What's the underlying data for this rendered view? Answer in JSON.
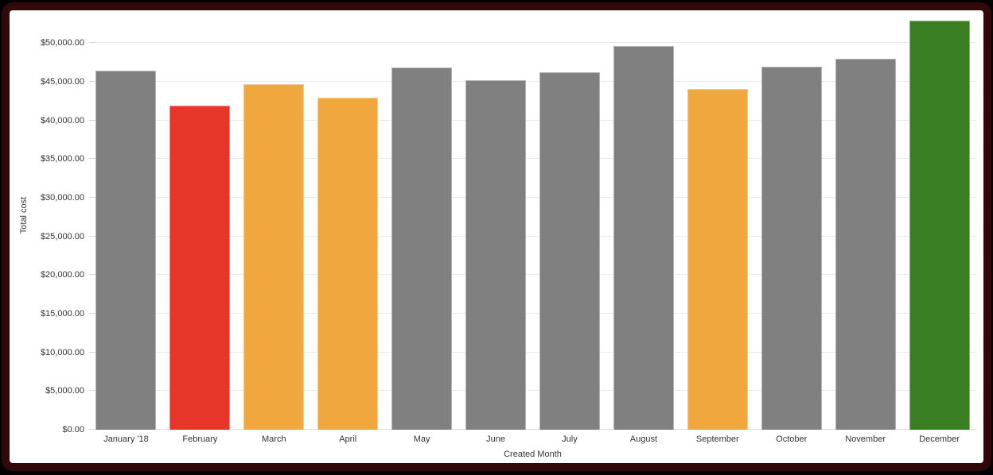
{
  "frame": {
    "outer_color": "#000000",
    "border_color": "#310909",
    "background": "#ffffff"
  },
  "colors": {
    "grid": "#ebebeb",
    "axis_line": "#e0e0e0",
    "tick": "#d6d6d6",
    "text": "#333333",
    "bar_default": "#808080",
    "bar_red": "#e8352a",
    "bar_orange": "#f0a73e",
    "bar_green": "#3a7e22"
  },
  "chart_data": {
    "type": "bar",
    "title": "",
    "xlabel": "Created Month",
    "ylabel": "Total cost",
    "categories": [
      "January '18",
      "February",
      "March",
      "April",
      "May",
      "June",
      "July",
      "August",
      "September",
      "October",
      "November",
      "December"
    ],
    "values": [
      46400,
      41900,
      44650,
      42950,
      46800,
      45200,
      46250,
      49650,
      44050,
      46950,
      48000,
      52850
    ],
    "bar_colors": [
      "#808080",
      "#e8352a",
      "#f0a73e",
      "#f0a73e",
      "#808080",
      "#808080",
      "#808080",
      "#808080",
      "#f0a73e",
      "#808080",
      "#808080",
      "#3a7e22"
    ],
    "value_format": "usd",
    "yaxis": {
      "min": 0,
      "max": 50000,
      "tick_step": 5000,
      "tick_labels": [
        "$0.00",
        "$5,000.00",
        "$10,000.00",
        "$15,000.00",
        "$20,000.00",
        "$25,000.00",
        "$30,000.00",
        "$35,000.00",
        "$40,000.00",
        "$45,000.00",
        "$50,000.00"
      ],
      "render_max": 53200,
      "grid": true
    },
    "legend": "none"
  }
}
